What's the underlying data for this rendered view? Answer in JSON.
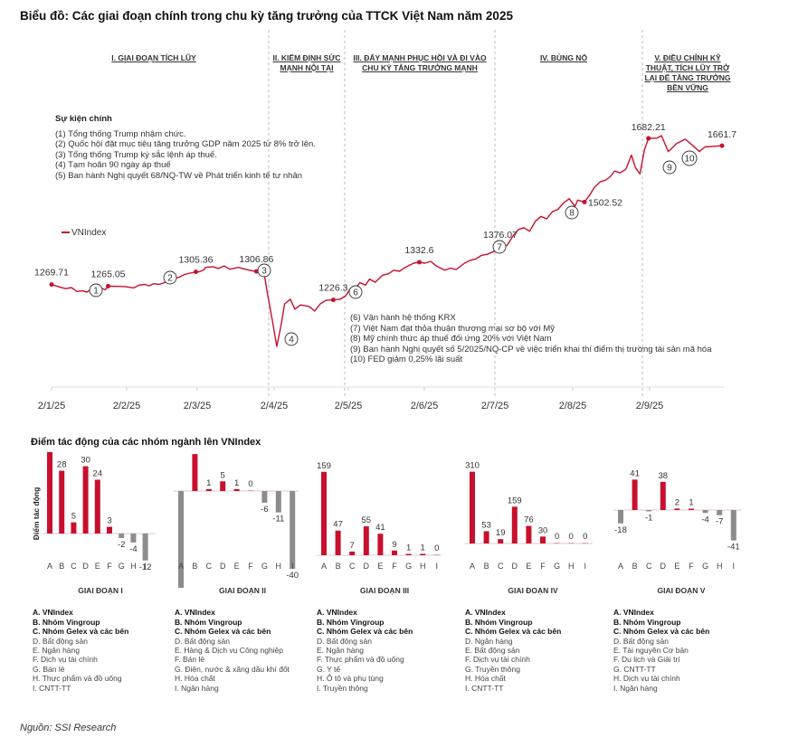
{
  "title": "Biểu đồ: Các giai đoạn chính trong chu kỳ tăng trưởng của TTCK Việt Nam năm 2025",
  "phases": [
    {
      "label": "I. GIAI ĐOẠN TÍCH LŨY"
    },
    {
      "label": "II. KIỂM ĐỊNH SỨC MẠNH NỘI TẠI"
    },
    {
      "label": "III. ĐẨY MẠNH PHỤC HỒI VÀ ĐI VÀO CHU KỲ TĂNG TRƯỞNG MẠNH"
    },
    {
      "label": "IV. BÙNG NỔ"
    },
    {
      "label": "V. ĐIỀU CHỈNH KỸ THUẬT, TÍCH LŨY TRỞ LẠI ĐỂ TĂNG TRƯỞNG BỀN VỮNG"
    }
  ],
  "events_heading": "Sự kiện chính",
  "events_top": [
    "(1) Tổng thống Trump nhậm chức.",
    "(2) Quốc hội đặt mục tiêu tăng trưởng GDP năm 2025 từ 8% trở lên.",
    "(3) Tổng thống Trump ký sắc lệnh áp thuế.",
    "(4) Tạm hoãn 90 ngày áp thuế",
    "(5) Ban hành Nghị quyết 68/NQ-TW về Phát triển kinh tế tư nhân"
  ],
  "events_bottom": [
    "(6) Vận hành hệ thống KRX",
    "(7) Việt Nam đạt thỏa thuận thương mại sơ bộ với Mỹ",
    "(8) Mỹ chính thức áp thuế đối ứng 20% với Việt Nam",
    "(9) Ban hành Nghị quyết số 5/2025/NQ-CP về việc triển khai thí điểm thị trường tài sản mã hóa",
    "(10) FED giảm 0,25% lãi suất"
  ],
  "legend_label": "VNIndex",
  "colors": {
    "red": "#c8102e",
    "gray": "#8c8c8c"
  },
  "chart_data": [
    {
      "type": "line",
      "title": "Biểu đồ: Các giai đoạn chính trong chu kỳ tăng trưởng của TTCK Việt Nam năm 2025",
      "series_name": "VNIndex",
      "x_ticks": [
        "2/1/25",
        "2/2/25",
        "2/3/25",
        "2/4/25",
        "2/5/25",
        "2/6/25",
        "2/7/25",
        "2/8/25",
        "2/9/25"
      ],
      "x_range_months": [
        0,
        10.5
      ],
      "ylim": [
        1050,
        1720
      ],
      "phase_boundaries_months": [
        2.98,
        3.95,
        5.95,
        7.92
      ],
      "points": [
        [
          0.0,
          1269.7
        ],
        [
          0.15,
          1262
        ],
        [
          0.25,
          1258
        ],
        [
          0.35,
          1261
        ],
        [
          0.45,
          1250
        ],
        [
          0.55,
          1252
        ],
        [
          0.62,
          1248
        ],
        [
          0.7,
          1256
        ],
        [
          0.8,
          1258
        ],
        [
          0.9,
          1258
        ],
        [
          0.95,
          1255
        ],
        [
          1.0,
          1265.05
        ],
        [
          1.3,
          1264
        ],
        [
          1.45,
          1260
        ],
        [
          1.55,
          1268
        ],
        [
          1.65,
          1270
        ],
        [
          1.72,
          1266
        ],
        [
          1.8,
          1272
        ],
        [
          1.9,
          1270
        ],
        [
          2.0,
          1275
        ],
        [
          2.1,
          1285
        ],
        [
          2.25,
          1290
        ],
        [
          2.35,
          1298
        ],
        [
          2.45,
          1302
        ],
        [
          2.55,
          1305.36
        ],
        [
          2.62,
          1306
        ],
        [
          2.7,
          1312
        ],
        [
          2.72,
          1318
        ],
        [
          2.85,
          1320
        ],
        [
          2.95,
          1315
        ],
        [
          3.05,
          1322
        ],
        [
          3.15,
          1313
        ],
        [
          3.3,
          1318
        ],
        [
          3.45,
          1312
        ],
        [
          3.55,
          1308
        ],
        [
          3.62,
          1306.86
        ],
        [
          3.7,
          1310
        ],
        [
          3.75,
          1308
        ],
        [
          3.82,
          1240
        ],
        [
          3.9,
          1170
        ],
        [
          3.98,
          1095
        ],
        [
          4.05,
          1150
        ],
        [
          4.12,
          1215
        ],
        [
          4.22,
          1228
        ],
        [
          4.3,
          1200
        ],
        [
          4.4,
          1212
        ],
        [
          4.55,
          1208
        ],
        [
          4.65,
          1195
        ],
        [
          4.75,
          1215
        ],
        [
          4.85,
          1225
        ],
        [
          4.98,
          1226.3
        ],
        [
          5.1,
          1228
        ],
        [
          5.2,
          1238
        ],
        [
          5.28,
          1258
        ],
        [
          5.35,
          1255
        ],
        [
          5.45,
          1275
        ],
        [
          5.55,
          1268
        ],
        [
          5.62,
          1285
        ],
        [
          5.72,
          1276
        ],
        [
          5.85,
          1296
        ],
        [
          5.95,
          1300
        ],
        [
          6.05,
          1310
        ],
        [
          6.15,
          1307
        ],
        [
          6.25,
          1318
        ],
        [
          6.4,
          1330
        ],
        [
          6.5,
          1332.6
        ],
        [
          6.6,
          1330
        ],
        [
          6.7,
          1335
        ],
        [
          6.8,
          1322
        ],
        [
          6.95,
          1310
        ],
        [
          7.05,
          1316
        ],
        [
          7.15,
          1312
        ],
        [
          7.3,
          1330
        ],
        [
          7.4,
          1338
        ],
        [
          7.5,
          1342
        ],
        [
          7.6,
          1352
        ],
        [
          7.7,
          1355
        ],
        [
          7.85,
          1365
        ],
        [
          7.98,
          1376.07
        ],
        [
          8.05,
          1380
        ],
        [
          8.15,
          1405
        ],
        [
          8.25,
          1425
        ],
        [
          8.35,
          1430
        ],
        [
          8.45,
          1420
        ],
        [
          8.55,
          1448
        ],
        [
          8.65,
          1462
        ],
        [
          8.75,
          1455
        ],
        [
          8.85,
          1475
        ],
        [
          8.95,
          1482
        ],
        [
          9.05,
          1500
        ],
        [
          9.15,
          1512
        ],
        [
          9.25,
          1490
        ],
        [
          9.3,
          1508
        ],
        [
          9.42,
          1502.52
        ],
        [
          9.5,
          1520
        ],
        [
          9.6,
          1545
        ],
        [
          9.7,
          1560
        ],
        [
          9.8,
          1565
        ],
        [
          9.88,
          1575
        ],
        [
          9.95,
          1590
        ],
        [
          10.05,
          1585
        ],
        [
          10.15,
          1595
        ],
        [
          10.25,
          1635
        ],
        [
          10.32,
          1600
        ],
        [
          10.4,
          1582
        ],
        [
          10.48,
          1650
        ],
        [
          10.55,
          1682.21
        ],
        [
          10.7,
          1683
        ],
        [
          10.78,
          1690
        ],
        [
          10.9,
          1645
        ],
        [
          11.05,
          1668
        ],
        [
          11.2,
          1680
        ],
        [
          11.35,
          1660
        ],
        [
          11.45,
          1645
        ],
        [
          11.55,
          1658
        ],
        [
          11.7,
          1660
        ],
        [
          11.85,
          1661.7
        ]
      ],
      "labeled_points": [
        {
          "label": "1269.71",
          "value": 1269.71
        },
        {
          "label": "1265.05",
          "value": 1265.05
        },
        {
          "label": "1305.36",
          "value": 1305.36
        },
        {
          "label": "1306.86",
          "value": 1306.86
        },
        {
          "label": "1226.3",
          "value": 1226.3
        },
        {
          "label": "1332.6",
          "value": 1332.6
        },
        {
          "label": "1376.07",
          "value": 1376.07
        },
        {
          "label": "1502.52",
          "value": 1502.52
        },
        {
          "label": "1682.21",
          "value": 1682.21
        },
        {
          "label": "1661.7",
          "value": 1661.7
        }
      ],
      "event_markers": [
        "1",
        "2",
        "3",
        "4",
        "6",
        "7",
        "8",
        "9",
        "10"
      ]
    },
    {
      "type": "bar",
      "title": "Điểm tác động của các nhóm ngành lên VNIndex",
      "ylabel": "Điểm tác động",
      "categories": [
        "A",
        "B",
        "C",
        "D",
        "E",
        "F",
        "G",
        "H",
        "I"
      ],
      "panels": [
        {
          "name": "GIAI ĐOẠN I",
          "values": [
            41,
            28,
            5,
            30,
            24,
            3,
            -2,
            -4,
            -12
          ]
        },
        {
          "name": "GIAI ĐOẠN II",
          "values": [
            -80,
            19,
            1,
            5,
            1,
            0,
            -6,
            -11,
            -40
          ]
        },
        {
          "name": "GIAI ĐOẠN III",
          "values": [
            159,
            47,
            7,
            55,
            41,
            9,
            1,
            1,
            0
          ]
        },
        {
          "name": "GIAI ĐOẠN IV",
          "values": [
            310,
            53,
            19,
            159,
            76,
            30,
            0,
            0,
            0
          ]
        },
        {
          "name": "GIAI ĐOẠN V",
          "values": [
            -18,
            41,
            -1,
            38,
            2,
            1,
            -4,
            -7,
            -41
          ]
        }
      ]
    }
  ],
  "bar_section_title": "Điểm tác động của các nhóm ngành lên VNIndex",
  "bar_ylabel": "Điểm tác động",
  "legends": [
    {
      "phase": "GIAI ĐOẠN I",
      "items": [
        "A. VNIndex",
        "B. Nhóm Vingroup",
        "C. Nhóm Gelex và các bên",
        "D. Bất động sản",
        "E. Ngân hàng",
        "F. Dịch vụ tài chính",
        "G. Bán lẻ",
        "H. Thực phẩm và đồ uống",
        "I. CNTT-TT"
      ]
    },
    {
      "phase": "GIAI ĐOẠN II",
      "items": [
        "A. VNIndex",
        "B. Nhóm Vingroup",
        "C. Nhóm Gelex và các bên",
        "D. Bất động sản",
        "E. Hàng & Dịch vụ Công nghiệp",
        "F. Bán lẻ",
        "G. Điện, nước & xăng dầu khí đốt",
        "H. Hóa chất",
        "I. Ngân hàng"
      ]
    },
    {
      "phase": "GIAI ĐOẠN III",
      "items": [
        "A. VNIndex",
        "B. Nhóm Vingroup",
        "C. Nhóm Gelex và các bên",
        "D. Bất động sản",
        "E. Ngân hàng",
        "F. Thực phẩm và đồ uống",
        "G. Y tế",
        "H. Ô tô và phụ tùng",
        "I. Truyền thông"
      ]
    },
    {
      "phase": "GIAI ĐOẠN IV",
      "items": [
        "A. VNIndex",
        "B. Nhóm Vingroup",
        "C. Nhóm Gelex và các bên",
        "D. Ngân hàng",
        "E. Bất động sản",
        "F. Dịch vụ tài chính",
        "G. Truyền thông",
        "H. Hóa chất",
        "I. CNTT-TT"
      ]
    },
    {
      "phase": "GIAI ĐOẠN V",
      "items": [
        "A. VNIndex",
        "B. Nhóm Vingroup",
        "C. Nhóm Gelex và các bên",
        "D. Bất động sản",
        "E. Tài nguyên Cơ bản",
        "F. Du lịch và Giải trí",
        "G. CNTT-TT",
        "H. Dịch vụ tài chính",
        "I. Ngân hàng"
      ]
    }
  ],
  "source": "Nguồn: SSI Research"
}
